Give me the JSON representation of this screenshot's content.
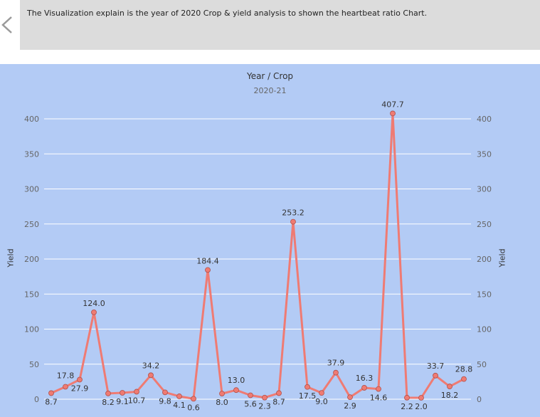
{
  "description": "The Visualization explain is the year of 2020 Crop & yield analysis to shown the heartbeat ratio Chart.",
  "chart_data": {
    "type": "line",
    "title": "Year / Crop",
    "subtitle": "2020-21",
    "xlabel": "",
    "ylabel": "Yield",
    "ylim": [
      0,
      420
    ],
    "yticks": [
      0,
      50,
      100,
      150,
      200,
      250,
      300,
      350,
      400
    ],
    "grid": true,
    "series_color": "#ef7b73",
    "values": [
      8.7,
      17.8,
      27.9,
      124.0,
      8.2,
      9.1,
      10.7,
      34.2,
      9.8,
      4.1,
      0.6,
      184.4,
      8.0,
      13.0,
      5.6,
      2.3,
      8.7,
      253.2,
      17.5,
      9.0,
      37.9,
      2.9,
      16.3,
      14.6,
      407.7,
      2.2,
      2.0,
      33.7,
      18.2,
      28.8
    ],
    "labels": [
      "8.7",
      "17.8",
      "27.9",
      "124.0",
      "8.2",
      "9.1",
      "10.7",
      "34.2",
      "9.8",
      "4.1",
      "0.6",
      "184.4",
      "8.0",
      "13.0",
      "5.6",
      "2.3",
      "8.7",
      "253.2",
      "17.5",
      "9.0",
      "37.9",
      "2.9",
      "16.3",
      "14.6",
      "407.7",
      "2.2",
      "2.0",
      "33.7",
      "18.2",
      "28.8"
    ]
  }
}
